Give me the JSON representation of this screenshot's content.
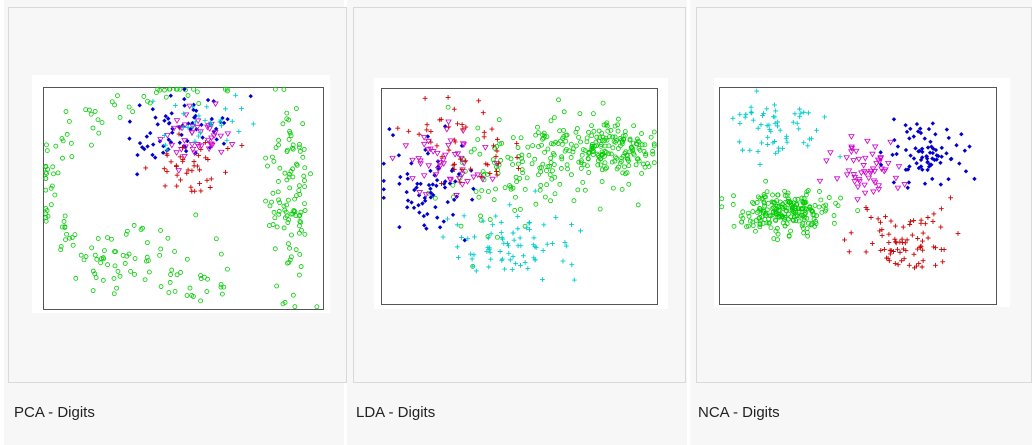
{
  "gallery": [
    {
      "caption": "PCA - Digits"
    },
    {
      "caption": "LDA - Digits"
    },
    {
      "caption": "NCA - Digits"
    }
  ],
  "chart_data": [
    {
      "type": "scatter",
      "caption": "PCA - Digits",
      "xlim": [
        0,
        100
      ],
      "ylim": [
        0,
        100
      ],
      "series": [
        {
          "marker": "circle",
          "color": "#00cc00",
          "clusters": [
            {
              "shape": "arc",
              "cx": 79,
              "cy": 55,
              "rx": 80,
              "ry": 48,
              "a0": 100,
              "a1": 260,
              "spread": 4,
              "n": 120
            },
            {
              "shape": "blob",
              "cx": 88,
              "cy": 52,
              "sx": 4,
              "sy": 22,
              "n": 110
            },
            {
              "shape": "blob",
              "cx": 36,
              "cy": 25,
              "sx": 16,
              "sy": 9,
              "n": 40
            }
          ]
        },
        {
          "marker": "diamond",
          "color": "#0000cc",
          "clusters": [
            {
              "shape": "blob",
              "cx": 50,
              "cy": 80,
              "sx": 10,
              "sy": 8,
              "n": 70
            }
          ]
        },
        {
          "marker": "triangle",
          "color": "#cc00cc",
          "clusters": [
            {
              "shape": "blob",
              "cx": 55,
              "cy": 78,
              "sx": 7,
              "sy": 6,
              "n": 45
            }
          ]
        },
        {
          "marker": "plus",
          "color": "#cc0000",
          "clusters": [
            {
              "shape": "blob",
              "cx": 52,
              "cy": 63,
              "sx": 8,
              "sy": 6,
              "n": 40
            }
          ]
        },
        {
          "marker": "plus",
          "color": "#00cccc",
          "clusters": [
            {
              "shape": "blob",
              "cx": 57,
              "cy": 84,
              "sx": 9,
              "sy": 6,
              "n": 30
            }
          ]
        }
      ]
    },
    {
      "type": "scatter",
      "caption": "LDA - Digits",
      "xlim": [
        0,
        100
      ],
      "ylim": [
        0,
        100
      ],
      "series": [
        {
          "marker": "circle",
          "color": "#00cc00",
          "clusters": [
            {
              "shape": "blob",
              "cx": 84,
              "cy": 72,
              "sx": 8,
              "sy": 6,
              "n": 150
            },
            {
              "shape": "blob",
              "cx": 64,
              "cy": 68,
              "sx": 12,
              "sy": 10,
              "n": 110
            },
            {
              "shape": "blob",
              "cx": 40,
              "cy": 55,
              "sx": 11,
              "sy": 14,
              "n": 60
            }
          ]
        },
        {
          "marker": "diamond",
          "color": "#0000cc",
          "clusters": [
            {
              "shape": "blob",
              "cx": 18,
              "cy": 55,
              "sx": 9,
              "sy": 10,
              "n": 70
            }
          ]
        },
        {
          "marker": "triangle",
          "color": "#cc00cc",
          "clusters": [
            {
              "shape": "blob",
              "cx": 22,
              "cy": 65,
              "sx": 8,
              "sy": 8,
              "n": 50
            }
          ]
        },
        {
          "marker": "plus",
          "color": "#cc0000",
          "clusters": [
            {
              "shape": "blob",
              "cx": 32,
              "cy": 73,
              "sx": 10,
              "sy": 10,
              "n": 50
            }
          ]
        },
        {
          "marker": "plus",
          "color": "#00cccc",
          "clusters": [
            {
              "shape": "blob",
              "cx": 48,
              "cy": 27,
              "sx": 12,
              "sy": 8,
              "n": 80
            }
          ]
        }
      ]
    },
    {
      "type": "scatter",
      "caption": "NCA - Digits",
      "xlim": [
        0,
        100
      ],
      "ylim": [
        0,
        100
      ],
      "series": [
        {
          "marker": "circle",
          "color": "#00cc00",
          "clusters": [
            {
              "shape": "blob",
              "cx": 24,
              "cy": 42,
              "sx": 9,
              "sy": 5,
              "n": 230
            }
          ]
        },
        {
          "marker": "diamond",
          "color": "#0000cc",
          "clusters": [
            {
              "shape": "blob",
              "cx": 73,
              "cy": 70,
              "sx": 7,
              "sy": 8,
              "n": 80
            }
          ]
        },
        {
          "marker": "triangle",
          "color": "#cc00cc",
          "clusters": [
            {
              "shape": "blob",
              "cx": 52,
              "cy": 62,
              "sx": 5,
              "sy": 6,
              "n": 55
            }
          ]
        },
        {
          "marker": "plus",
          "color": "#cc0000",
          "clusters": [
            {
              "shape": "blob",
              "cx": 67,
              "cy": 30,
              "sx": 8,
              "sy": 7,
              "n": 80
            }
          ]
        },
        {
          "marker": "plus",
          "color": "#00cccc",
          "clusters": [
            {
              "shape": "blob",
              "cx": 22,
              "cy": 80,
              "sx": 9,
              "sy": 7,
              "n": 60
            }
          ]
        }
      ]
    }
  ]
}
